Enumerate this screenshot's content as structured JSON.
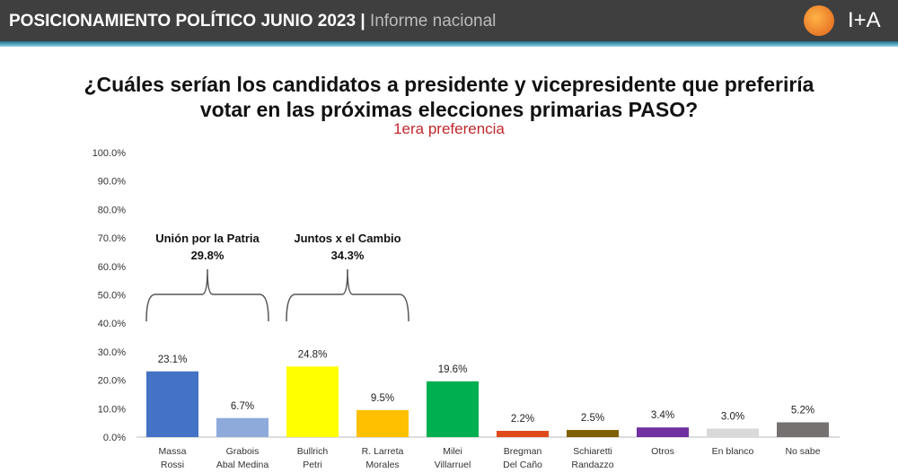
{
  "header": {
    "title": "POSICIONAMIENTO POLÍTICO JUNIO 2023",
    "separator": " | ",
    "subtitle": "Informe nacional",
    "logo_text": "I+A"
  },
  "question": {
    "line1": "¿Cuáles serían los candidatos a presidente y vicepresidente que preferiría",
    "line2": "votar en las próximas elecciones primarias PASO?",
    "preference": "1era preferencia"
  },
  "chart_data": {
    "type": "bar",
    "title": "¿Cuáles serían los candidatos a presidente y vicepresidente que preferiría votar en las próximas elecciones primarias PASO?",
    "subtitle": "1era preferencia",
    "categories": [
      [
        "Massa",
        "Rossi"
      ],
      [
        "Grabois",
        "Abal Medina"
      ],
      [
        "Bullrich",
        "Petri"
      ],
      [
        "R. Larreta",
        "Morales"
      ],
      [
        "Milei",
        "Villarruel"
      ],
      [
        "Bregman",
        "Del Caño"
      ],
      [
        "Schiaretti",
        "Randazzo"
      ],
      [
        "Otros"
      ],
      [
        "En blanco"
      ],
      [
        "No sabe"
      ]
    ],
    "values": [
      23.1,
      6.7,
      24.8,
      9.5,
      19.6,
      2.2,
      2.5,
      3.4,
      3.0,
      5.2
    ],
    "value_labels": [
      "23.1%",
      "6.7%",
      "24.8%",
      "9.5%",
      "19.6%",
      "2.2%",
      "2.5%",
      "3.4%",
      "3.0%",
      "5.2%"
    ],
    "colors": [
      "#4472c4",
      "#8eaadb",
      "#ffff00",
      "#ffc000",
      "#00b050",
      "#e04a1a",
      "#7f6000",
      "#7030a0",
      "#d9d9d9",
      "#767171"
    ],
    "ylim": [
      0,
      100
    ],
    "yticks": [
      "0.0%",
      "10.0%",
      "20.0%",
      "30.0%",
      "40.0%",
      "50.0%",
      "60.0%",
      "70.0%",
      "80.0%",
      "90.0%",
      "100.0%"
    ],
    "grid": false,
    "annotations": [
      {
        "name": "Unión por la Patria",
        "value": "29.8%",
        "spans": [
          0,
          1
        ]
      },
      {
        "name": "Juntos x el Cambio",
        "value": "34.3%",
        "spans": [
          2,
          3
        ]
      }
    ]
  }
}
